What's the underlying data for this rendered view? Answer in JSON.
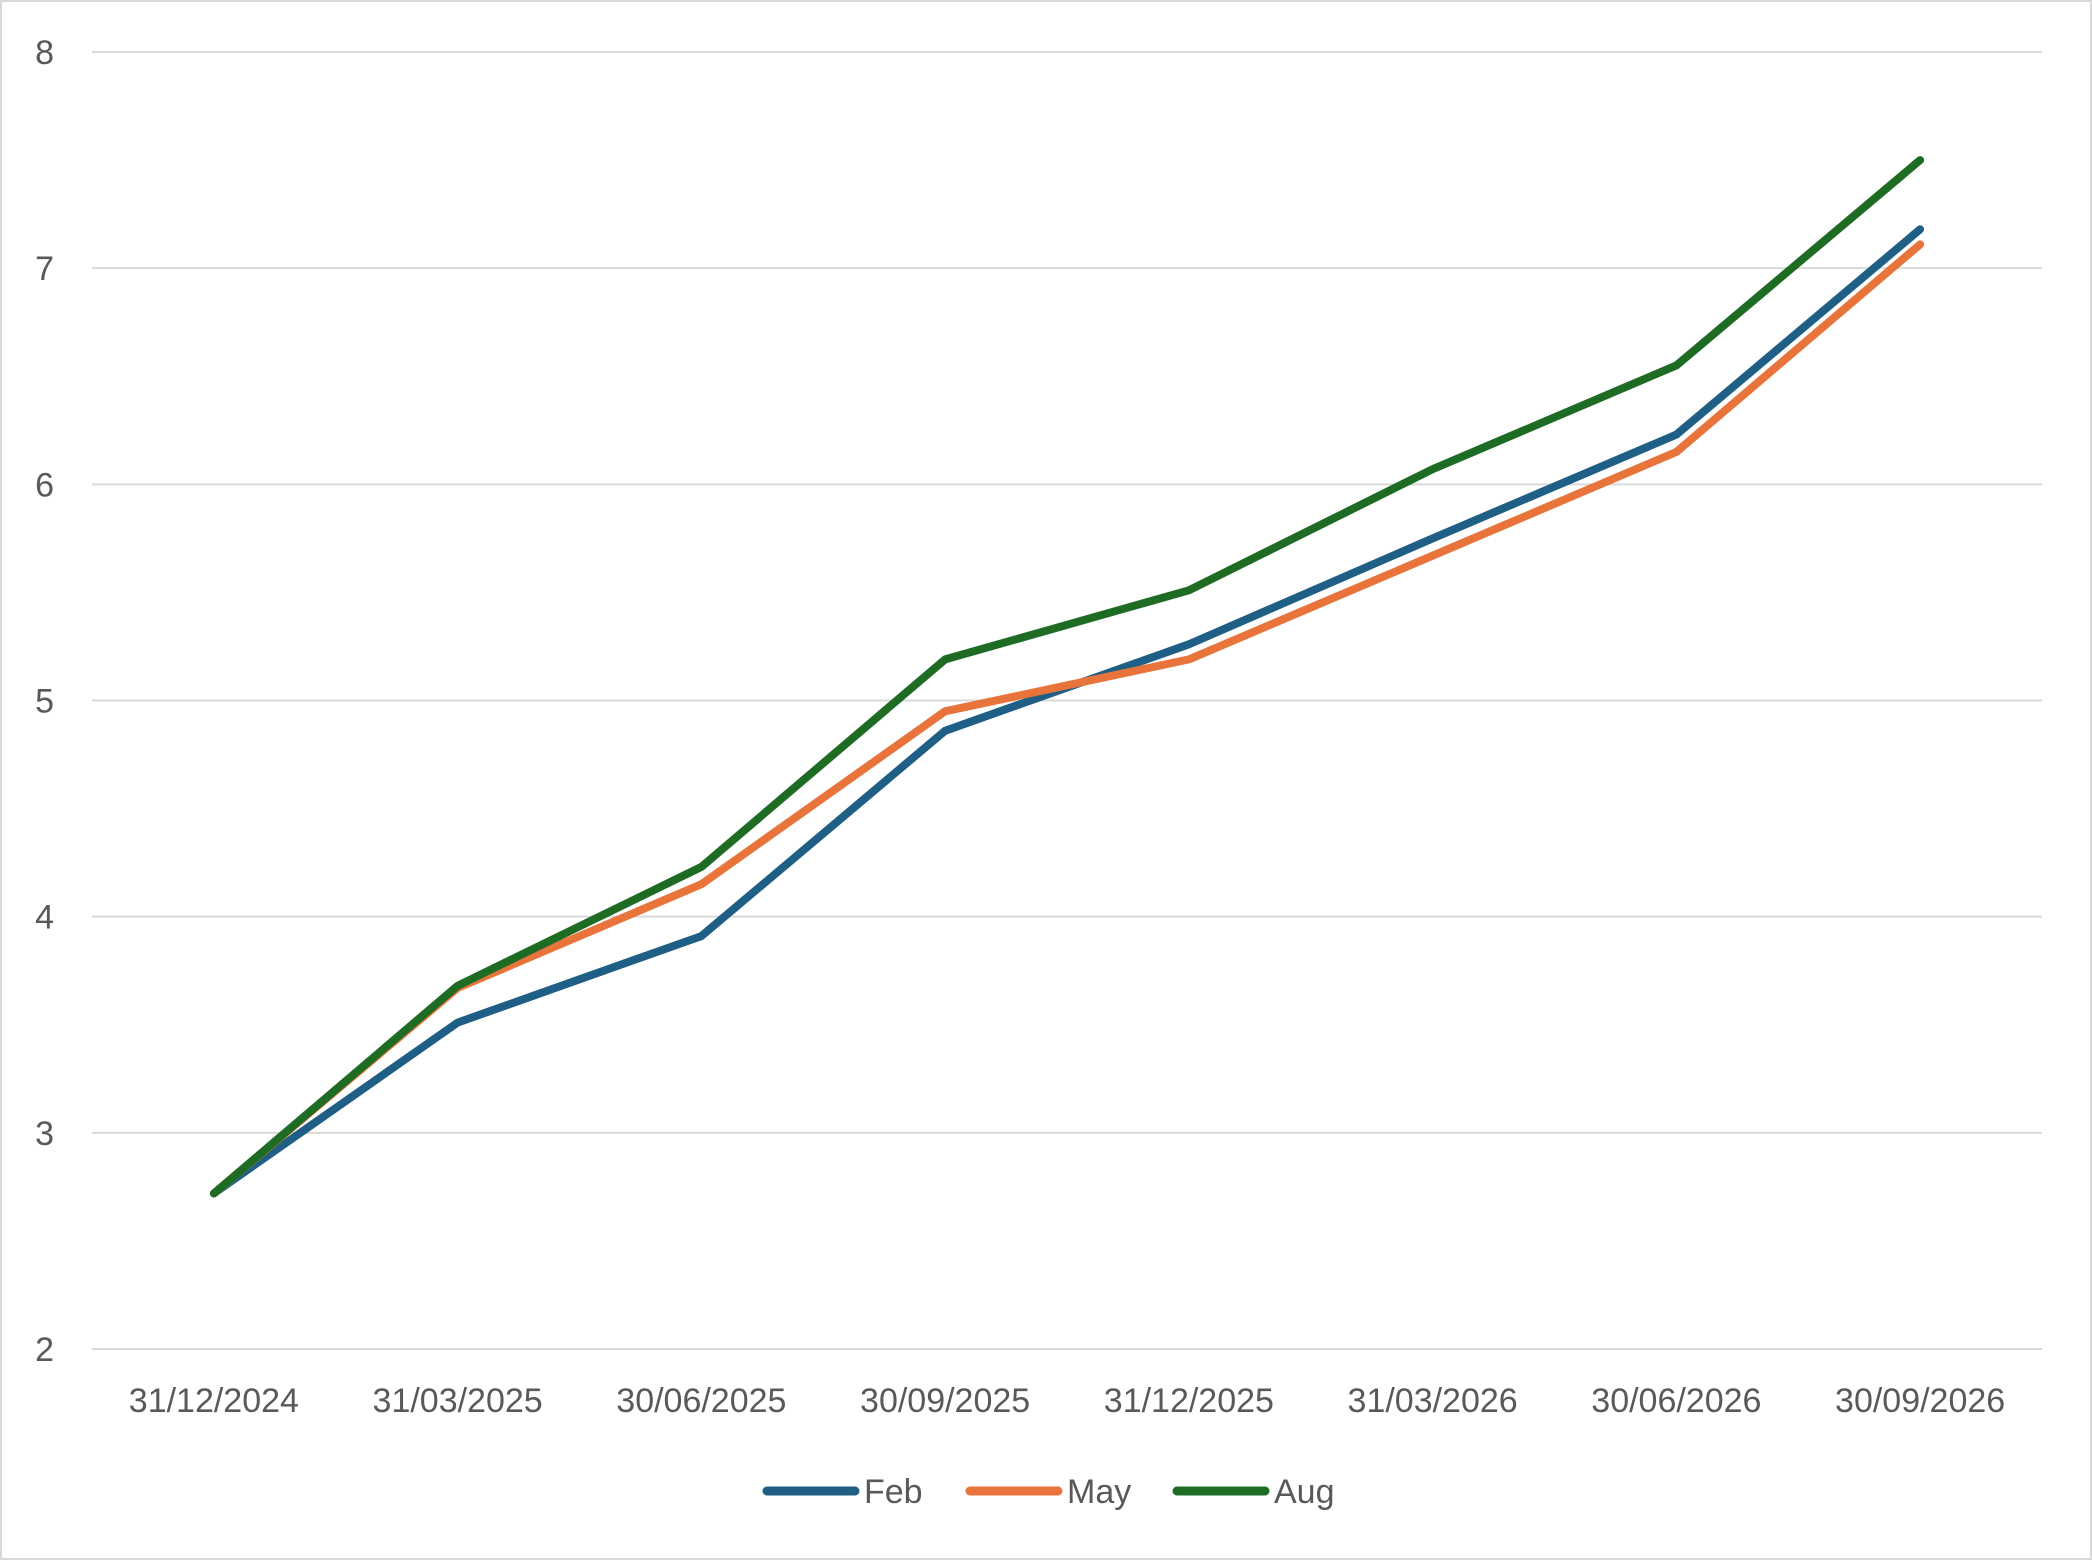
{
  "chart_data": {
    "type": "line",
    "title": "",
    "xlabel": "",
    "ylabel": "",
    "categories": [
      "31/12/2024",
      "31/03/2025",
      "30/06/2025",
      "30/09/2025",
      "31/12/2025",
      "31/03/2026",
      "30/06/2026",
      "30/09/2026"
    ],
    "ylim": [
      2,
      8
    ],
    "yticks": [
      2,
      3,
      4,
      5,
      6,
      7,
      8
    ],
    "grid": true,
    "legend": "bottom",
    "series": [
      {
        "name": "Feb",
        "color": "#1f5f86",
        "values": [
          2.72,
          3.51,
          3.91,
          4.86,
          5.26,
          5.75,
          6.23,
          7.18
        ]
      },
      {
        "name": "May",
        "color": "#e8743b",
        "values": [
          2.72,
          3.67,
          4.15,
          4.95,
          5.19,
          5.67,
          6.15,
          7.11
        ]
      },
      {
        "name": "Aug",
        "color": "#1e6b24",
        "values": [
          2.72,
          3.68,
          4.23,
          5.19,
          5.51,
          6.07,
          6.55,
          7.5
        ]
      }
    ]
  }
}
